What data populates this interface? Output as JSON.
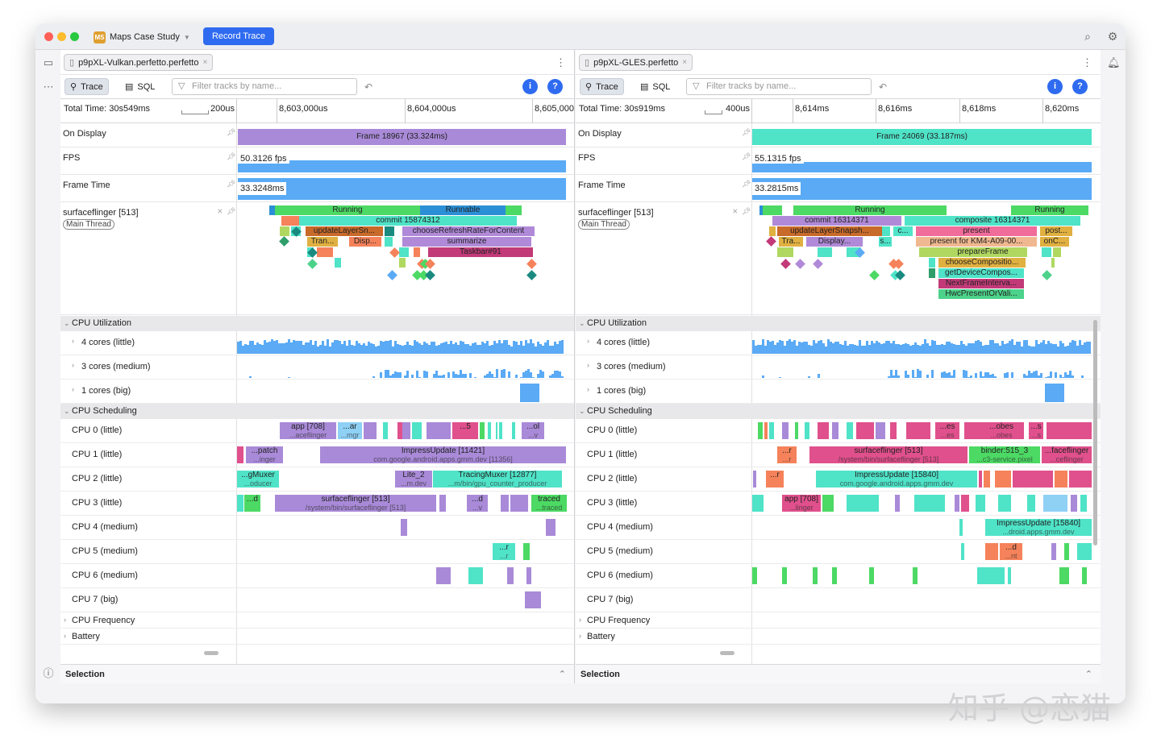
{
  "project": {
    "name": "Maps Case Study",
    "badge": "MS",
    "record_button": "Record Trace"
  },
  "left": {
    "tab": "p9pXL-Vulkan.perfetto.perfetto",
    "trace_btn": "Trace",
    "sql_btn": "SQL",
    "filter_placeholder": "Filter tracks by name...",
    "total_time": "Total Time: 30s549ms",
    "scale": "200us",
    "ticks": [
      "8,603,000us",
      "8,604,000us",
      "8,605,000"
    ],
    "on_display": "On Display",
    "frame": "Frame 18967 (33.324ms)",
    "fps": "FPS",
    "fps_val": "50.3126 fps",
    "frame_time": "Frame Time",
    "frame_time_val": "33.3248ms",
    "sf": "surfaceflinger [513]",
    "main_thread": "Main Thread",
    "slices": [
      "Running",
      "Runnable",
      "commit 15874312",
      "updateLayerSn...",
      "chooseRefreshRateForContent",
      "Tran...",
      "Disp...",
      "summarize",
      "Taskbar#91"
    ],
    "sched": [
      [
        "app [708]",
        "...aceflinger"
      ],
      [
        "...ar",
        "...mgr"
      ],
      [
        "...5",
        ""
      ],
      [
        "...ol",
        "...v"
      ],
      [
        "...patch",
        "...inger"
      ],
      [
        "ImpressUpdate [11421]",
        "com.google.android.apps.gmm.dev [11356]"
      ],
      [
        "...gMuxer",
        "...oducer"
      ],
      [
        "Lite_2",
        "...m.dev"
      ],
      [
        "TracingMuxer [12877]",
        "...m/bin/gpu_counter_producer"
      ],
      [
        "...d",
        ""
      ],
      [
        "surfaceflinger [513]",
        "/system/bin/surfaceflinger [513]"
      ],
      [
        "...d",
        "...v"
      ],
      [
        "traced",
        "...traced"
      ],
      [
        "...r",
        "...r"
      ]
    ]
  },
  "right": {
    "tab": "p9pXL-GLES.perfetto",
    "trace_btn": "Trace",
    "sql_btn": "SQL",
    "filter_placeholder": "Filter tracks by name...",
    "total_time": "Total Time: 30s919ms",
    "scale": "400us",
    "ticks": [
      "8,614ms",
      "8,616ms",
      "8,618ms",
      "8,620ms"
    ],
    "on_display": "On Display",
    "frame": "Frame 24069 (33.187ms)",
    "fps": "FPS",
    "fps_val": "55.1315 fps",
    "frame_time": "Frame Time",
    "frame_time_val": "33.2815ms",
    "sf": "surfaceflinger [513]",
    "main_thread": "Main Thread",
    "slices": [
      "Running",
      "Running",
      "commit 16314371",
      "composite 16314371",
      "updateLayerSnapsh...",
      "c...",
      "present",
      "post...",
      "Tra...",
      "Display...",
      "s...",
      "present for KM4-A09-00...",
      "onC...",
      "prepareFrame",
      "chooseCompositio...",
      "getDeviceCompos...",
      "NextFrameInterva...",
      "HwcPresentOrVali..."
    ],
    "sched": [
      [
        "...es",
        "...es"
      ],
      [
        "...obes",
        "...obes"
      ],
      [
        "...s",
        "...s"
      ],
      [
        "...r",
        "...r"
      ],
      [
        "surfaceflinger [513]",
        "/system/bin/surfaceflinger [513]"
      ],
      [
        "binder:515_3",
        "...c3-service.pixel"
      ],
      [
        "...faceflinger",
        "...ceflinger"
      ],
      [
        "...r",
        ""
      ],
      [
        "ImpressUpdate [15840]",
        "com.google.android.apps.gmm.dev"
      ],
      [
        "app [708]",
        "...linger"
      ],
      [
        "ImpressUpdate [15840]",
        "...droid.apps.gmm.dev"
      ],
      [
        "...d",
        "...nt"
      ]
    ]
  },
  "groups": {
    "cpu_util": "CPU Utilization",
    "cpu_sched": "CPU Scheduling",
    "cpu_freq": "CPU Frequency",
    "battery": "Battery"
  },
  "util_rows": [
    "4 cores (little)",
    "3 cores (medium)",
    "1 cores (big)"
  ],
  "cpu_rows": [
    "CPU 0 (little)",
    "CPU 1 (little)",
    "CPU 2 (little)",
    "CPU 3 (little)",
    "CPU 4 (medium)",
    "CPU 5 (medium)",
    "CPU 6 (medium)",
    "CPU 7 (big)"
  ],
  "selection": "Selection",
  "watermark": "知乎 @恋猫",
  "colors": {
    "accent": "#2f6bf0",
    "frame_left": "#a98ad8",
    "frame_right": "#4fe3c8",
    "counter": "#5aaaf5"
  }
}
